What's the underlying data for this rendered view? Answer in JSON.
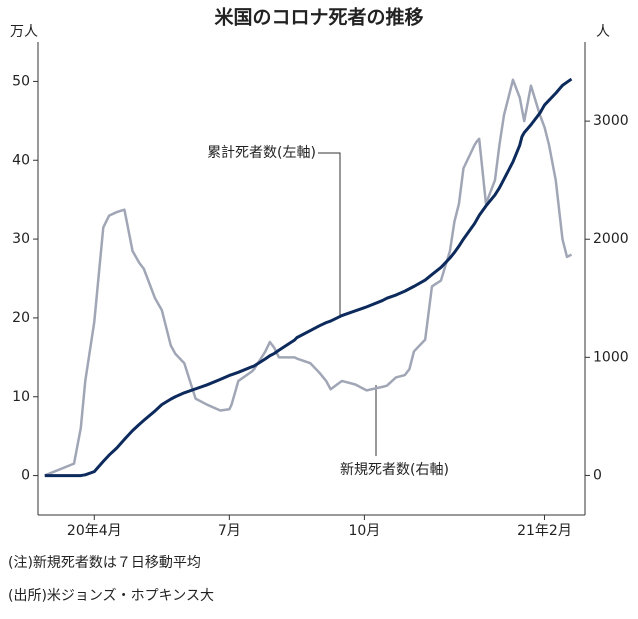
{
  "chart_data": {
    "type": "line",
    "title": "米国のコロナ死者の推移",
    "y_unit": "万人",
    "y2_unit": "人",
    "x": [
      2.9,
      3.55,
      3.7,
      3.8,
      4.0,
      4.2,
      4.33,
      4.5,
      4.67,
      4.85,
      5.0,
      5.1,
      5.35,
      5.5,
      5.7,
      5.8,
      6.0,
      6.25,
      6.5,
      6.8,
      7.0,
      7.05,
      7.2,
      7.5,
      7.55,
      7.8,
      7.9,
      8.0,
      8.1,
      8.45,
      8.5,
      8.8,
      9.0,
      9.15,
      9.25,
      9.5,
      9.8,
      10.0,
      10.05,
      10.4,
      10.5,
      10.7,
      10.9,
      11.0,
      11.1,
      11.35,
      11.5,
      11.7,
      11.9,
      12.0,
      12.1,
      12.2,
      12.45,
      12.5,
      12.55,
      12.7,
      12.9,
      13.0,
      13.1,
      13.3,
      13.45,
      13.5,
      13.55,
      13.7,
      13.9,
      14.0,
      14.1,
      14.25,
      14.4,
      14.5,
      14.6
    ],
    "series": [
      {
        "name": "累計死者数(左軸)",
        "color": "#0d2a5c",
        "axis": "y",
        "values": [
          0,
          0,
          0,
          0.1,
          0.5,
          1.8,
          2.6,
          3.5,
          4.6,
          5.7,
          6.5,
          7.0,
          8.2,
          9.0,
          9.7,
          10.0,
          10.5,
          11.0,
          11.5,
          12.2,
          12.7,
          12.8,
          13.1,
          13.8,
          13.9,
          14.8,
          15.2,
          15.5,
          15.9,
          17.2,
          17.5,
          18.4,
          19.0,
          19.4,
          19.6,
          20.3,
          20.9,
          21.3,
          21.4,
          22.2,
          22.5,
          22.9,
          23.4,
          23.7,
          24.0,
          24.8,
          25.5,
          26.4,
          27.6,
          28.3,
          29.1,
          30.0,
          32.0,
          32.5,
          33.0,
          34.2,
          35.6,
          36.5,
          37.6,
          39.8,
          41.9,
          43.0,
          43.5,
          44.5,
          46.0,
          47.0,
          47.6,
          48.5,
          49.5,
          49.9,
          50.3
        ]
      },
      {
        "name": "新規死者数(右軸)",
        "color": "#a0a6b5",
        "axis": "y2",
        "values": [
          0,
          100,
          400,
          800,
          1300,
          2100,
          2200,
          2230,
          2250,
          1900,
          1800,
          1750,
          1500,
          1400,
          1100,
          1030,
          950,
          650,
          600,
          550,
          560,
          600,
          800,
          880,
          900,
          1050,
          1130,
          1080,
          1000,
          1000,
          990,
          950,
          870,
          800,
          730,
          800,
          770,
          730,
          720,
          750,
          760,
          830,
          850,
          900,
          1050,
          1150,
          1600,
          1650,
          1900,
          2150,
          2300,
          2600,
          2800,
          2830,
          2850,
          2300,
          2500,
          2800,
          3050,
          3350,
          3200,
          3100,
          3000,
          3300,
          3050,
          2950,
          2800,
          2500,
          2000,
          1850,
          1870
        ]
      }
    ],
    "xlim": [
      2.75,
      14.9
    ],
    "xticks": [
      {
        "value": 4,
        "label": "20年4月"
      },
      {
        "value": 7,
        "label": "7月"
      },
      {
        "value": 10,
        "label": "10月"
      },
      {
        "value": 14,
        "label": "21年2月"
      }
    ],
    "ylim": [
      -5,
      55
    ],
    "yticks": [
      0,
      10,
      20,
      30,
      40,
      50
    ],
    "y2lim": [
      -335,
      3670
    ],
    "y2ticks": [
      0,
      1000,
      2000,
      3000
    ],
    "notes": [
      "(注)新規死者数は７日移動平均",
      "(出所)米ジョンズ・ホプキンス大"
    ]
  }
}
